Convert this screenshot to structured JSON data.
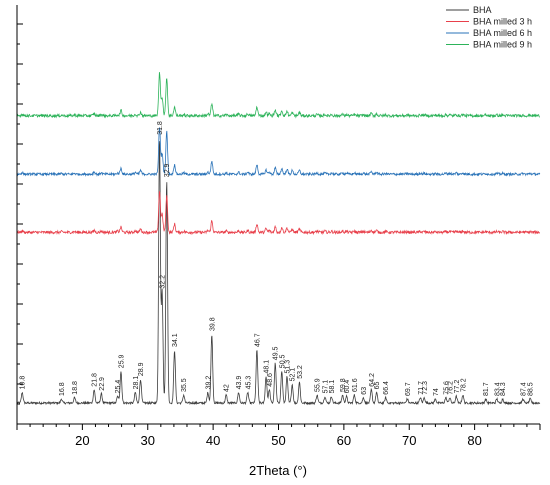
{
  "chart_data": {
    "type": "line",
    "title": "",
    "xlabel": "2Theta (°)",
    "ylabel": "",
    "xlim": [
      10,
      90
    ],
    "ylim": [
      0,
      10
    ],
    "x_ticks": [
      20,
      30,
      40,
      50,
      60,
      70,
      80
    ],
    "legend": {
      "position": "top-right"
    },
    "series": [
      {
        "name": "BHA",
        "color": "#3d3d3d",
        "offset": 0,
        "scale": 7.8,
        "noise": 0.03
      },
      {
        "name": "BHA milled 3 h",
        "color": "#e8404b",
        "offset": 5.02,
        "scale": 1.3,
        "noise": 0.04
      },
      {
        "name": "BHA milled 6 h",
        "color": "#2a73b8",
        "offset": 6.73,
        "scale": 1.5,
        "noise": 0.035
      },
      {
        "name": "BHA milled 9 h",
        "color": "#2db35a",
        "offset": 8.45,
        "scale": 1.35,
        "noise": 0.04
      }
    ],
    "peaks": [
      {
        "x": 10.8,
        "label": "10.8",
        "h": 0.04
      },
      {
        "x": 16.8,
        "label": "16.8",
        "h": 0.015
      },
      {
        "x": 18.8,
        "label": "18.8",
        "h": 0.02
      },
      {
        "x": 21.8,
        "label": "21.8",
        "h": 0.05
      },
      {
        "x": 22.9,
        "label": "22.9",
        "h": 0.035
      },
      {
        "x": 25.4,
        "label": "25.4",
        "h": 0.025
      },
      {
        "x": 25.9,
        "label": "25.9",
        "h": 0.12
      },
      {
        "x": 28.1,
        "label": "28.1",
        "h": 0.04
      },
      {
        "x": 28.9,
        "label": "28.9",
        "h": 0.09
      },
      {
        "x": 31.8,
        "label": "31.8",
        "h": 1.0
      },
      {
        "x": 32.2,
        "label": "32.2",
        "h": 0.42
      },
      {
        "x": 32.9,
        "label": "32.9",
        "h": 0.84
      },
      {
        "x": 34.1,
        "label": "34.1",
        "h": 0.2
      },
      {
        "x": 35.5,
        "label": "35.5",
        "h": 0.03
      },
      {
        "x": 39.2,
        "label": "39.2",
        "h": 0.04
      },
      {
        "x": 39.8,
        "label": "39.8",
        "h": 0.26
      },
      {
        "x": 42.0,
        "label": "42",
        "h": 0.03
      },
      {
        "x": 43.9,
        "label": "43.9",
        "h": 0.04
      },
      {
        "x": 45.3,
        "label": "45.3",
        "h": 0.04
      },
      {
        "x": 46.7,
        "label": "46.7",
        "h": 0.2
      },
      {
        "x": 48.1,
        "label": "48.1",
        "h": 0.1
      },
      {
        "x": 48.6,
        "label": "48.6",
        "h": 0.05
      },
      {
        "x": 49.5,
        "label": "49.5",
        "h": 0.15
      },
      {
        "x": 50.5,
        "label": "50.5",
        "h": 0.12
      },
      {
        "x": 51.3,
        "label": "51.3",
        "h": 0.1
      },
      {
        "x": 52.1,
        "label": "52.1",
        "h": 0.07
      },
      {
        "x": 53.2,
        "label": "53.2",
        "h": 0.08
      },
      {
        "x": 55.9,
        "label": "55.9",
        "h": 0.03
      },
      {
        "x": 57.1,
        "label": "57.1",
        "h": 0.025
      },
      {
        "x": 58.1,
        "label": "58.1",
        "h": 0.025
      },
      {
        "x": 59.8,
        "label": "59.8",
        "h": 0.03
      },
      {
        "x": 60.4,
        "label": "60.4",
        "h": 0.025
      },
      {
        "x": 61.6,
        "label": "61.6",
        "h": 0.03
      },
      {
        "x": 63.0,
        "label": "63",
        "h": 0.02
      },
      {
        "x": 64.2,
        "label": "64.2",
        "h": 0.05
      },
      {
        "x": 65.0,
        "label": "65",
        "h": 0.04
      },
      {
        "x": 66.4,
        "label": "66.4",
        "h": 0.02
      },
      {
        "x": 69.7,
        "label": "69.7",
        "h": 0.015
      },
      {
        "x": 71.7,
        "label": "71.7",
        "h": 0.02
      },
      {
        "x": 72.3,
        "label": "72.3",
        "h": 0.02
      },
      {
        "x": 74.0,
        "label": "74",
        "h": 0.015
      },
      {
        "x": 75.6,
        "label": "75.6",
        "h": 0.02
      },
      {
        "x": 76.2,
        "label": "76.2",
        "h": 0.02
      },
      {
        "x": 77.2,
        "label": "77.2",
        "h": 0.025
      },
      {
        "x": 78.2,
        "label": "78.2",
        "h": 0.03
      },
      {
        "x": 81.7,
        "label": "81.7",
        "h": 0.015
      },
      {
        "x": 83.4,
        "label": "83.4",
        "h": 0.015
      },
      {
        "x": 84.3,
        "label": "84.3",
        "h": 0.015
      },
      {
        "x": 87.4,
        "label": "87.4",
        "h": 0.015
      },
      {
        "x": 88.5,
        "label": "88.5",
        "h": 0.015
      }
    ]
  }
}
